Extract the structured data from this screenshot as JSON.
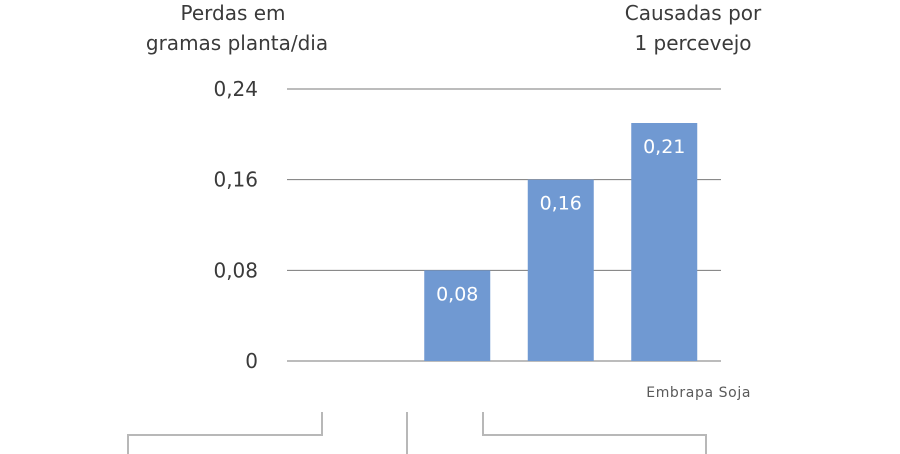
{
  "chart_data": {
    "type": "bar",
    "categories": [
      "",
      "",
      "",
      ""
    ],
    "values": [
      null,
      0.08,
      0.16,
      0.21
    ],
    "data_labels": [
      "",
      "0,08",
      "0,16",
      "0,21"
    ],
    "ylabel_lines": [
      "Perdas em",
      "gramas planta/dia"
    ],
    "annotation_lines": [
      "Causadas por",
      "1 percevejo"
    ],
    "yticks": [
      0,
      0.08,
      0.16,
      0.24
    ],
    "ytick_labels": [
      "0",
      "0,08",
      "0,16",
      "0,24"
    ],
    "ylim": [
      0,
      0.24
    ],
    "grid": true,
    "bar_color": "#7099d2",
    "source": "Embrapa Soja"
  }
}
